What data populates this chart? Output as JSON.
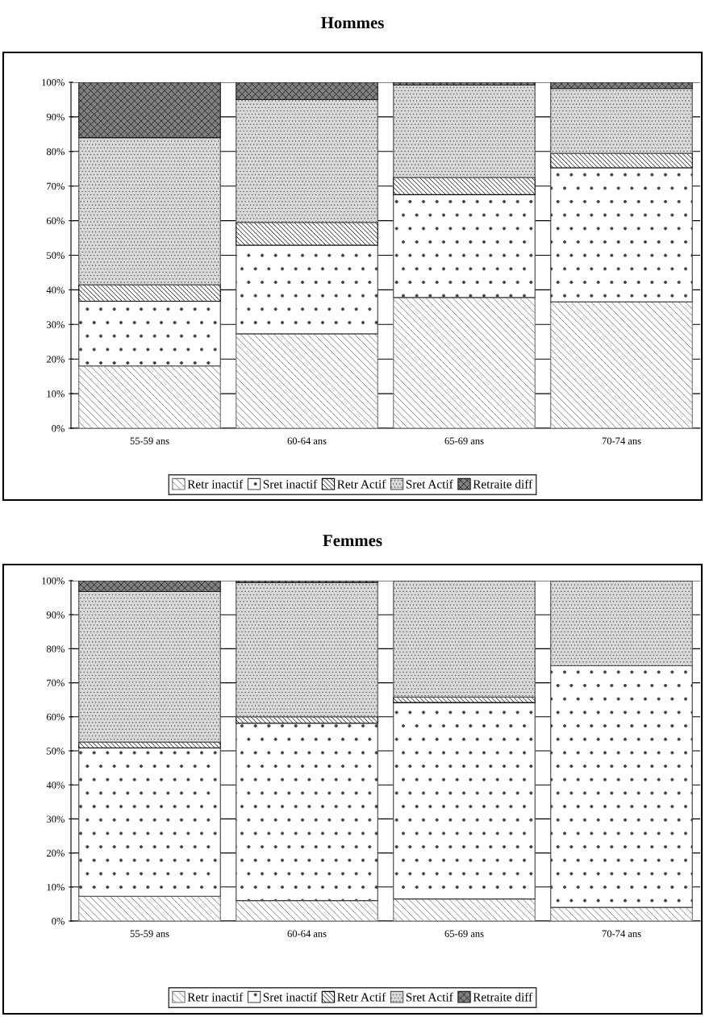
{
  "chart_data": [
    {
      "type": "bar",
      "stacked": true,
      "title": "Hommes",
      "categories": [
        "55-59 ans",
        "60-64 ans",
        "65-69 ans",
        "70-74 ans"
      ],
      "series": [
        {
          "name": "Retr inactif",
          "color": "#707070",
          "values": [
            18,
            27.3,
            37.8,
            36.5
          ]
        },
        {
          "name": "Sret inactif",
          "color": "#404040",
          "values": [
            18.7,
            25.6,
            29.7,
            38.8
          ]
        },
        {
          "name": "Retr Actif",
          "color": "#000000",
          "values": [
            4.8,
            6.6,
            5,
            4.2
          ]
        },
        {
          "name": "Sret Actif",
          "color": "#505050",
          "values": [
            42.5,
            35.5,
            26.7,
            18.7
          ]
        },
        {
          "name": "Retraite diff",
          "color": "#1a1a1a",
          "values": [
            16,
            5,
            0.8,
            1.8
          ]
        }
      ],
      "ylim": [
        0,
        100
      ],
      "yticks": [
        {
          "value": 0,
          "label": "0%"
        },
        {
          "value": 10,
          "label": "10%"
        },
        {
          "value": 20,
          "label": "20%"
        },
        {
          "value": 30,
          "label": "30%"
        },
        {
          "value": 40,
          "label": "40%"
        },
        {
          "value": 50,
          "label": "50%"
        },
        {
          "value": 60,
          "label": "60%"
        },
        {
          "value": 70,
          "label": "70%"
        },
        {
          "value": 80,
          "label": "80%"
        },
        {
          "value": 90,
          "label": "90%"
        },
        {
          "value": 100,
          "label": "100%"
        }
      ],
      "grid": "y",
      "legend": "bottom"
    },
    {
      "type": "bar",
      "stacked": true,
      "title": "Femmes",
      "categories": [
        "55-59 ans",
        "60-64 ans",
        "65-69 ans",
        "70-74 ans"
      ],
      "series": [
        {
          "name": "Retr inactif",
          "color": "#707070",
          "values": [
            7.3,
            6,
            6.5,
            4
          ]
        },
        {
          "name": "Sret inactif",
          "color": "#404040",
          "values": [
            43.6,
            52.1,
            57.7,
            71
          ]
        },
        {
          "name": "Retr Actif",
          "color": "#000000",
          "values": [
            1.7,
            1.9,
            1.6,
            0
          ]
        },
        {
          "name": "Sret Actif",
          "color": "#505050",
          "values": [
            44.2,
            39.4,
            34.2,
            25
          ]
        },
        {
          "name": "Retraite diff",
          "color": "#1a1a1a",
          "values": [
            3.2,
            0.6,
            0,
            0
          ]
        }
      ],
      "ylim": [
        0,
        100
      ],
      "yticks": [
        {
          "value": 0,
          "label": "0%"
        },
        {
          "value": 10,
          "label": "10%"
        },
        {
          "value": 20,
          "label": "20%"
        },
        {
          "value": 30,
          "label": "30%"
        },
        {
          "value": 40,
          "label": "40%"
        },
        {
          "value": 50,
          "label": "50%"
        },
        {
          "value": 60,
          "label": "60%"
        },
        {
          "value": 70,
          "label": "70%"
        },
        {
          "value": 80,
          "label": "80%"
        },
        {
          "value": 90,
          "label": "90%"
        },
        {
          "value": 100,
          "label": "100%"
        }
      ],
      "grid": "y",
      "legend": "bottom"
    }
  ]
}
